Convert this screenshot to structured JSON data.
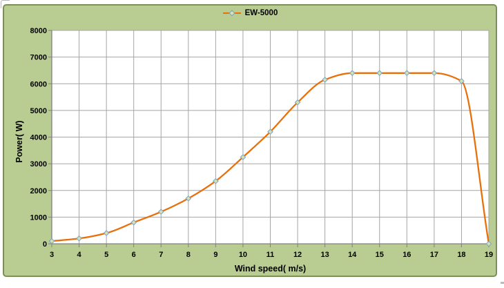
{
  "legend": {
    "label": "EW-5000"
  },
  "chart_data": {
    "type": "line",
    "title": "",
    "xlabel": "Wind speed( m/s)",
    "ylabel": "Power( W)",
    "xlim": [
      3,
      19
    ],
    "ylim": [
      0,
      8000
    ],
    "x_ticks": [
      3,
      4,
      5,
      6,
      7,
      8,
      9,
      10,
      11,
      12,
      13,
      14,
      15,
      16,
      17,
      18,
      19
    ],
    "y_ticks": [
      0,
      1000,
      2000,
      3000,
      4000,
      5000,
      6000,
      7000,
      8000
    ],
    "grid": true,
    "legend_position": "top-center",
    "series": [
      {
        "name": "EW-5000",
        "x": [
          3,
          4,
          5,
          6,
          7,
          8,
          9,
          10,
          11,
          12,
          13,
          14,
          15,
          16,
          17,
          18,
          19
        ],
        "values": [
          100,
          200,
          400,
          800,
          1200,
          1700,
          2350,
          3250,
          4200,
          5300,
          6150,
          6400,
          6400,
          6400,
          6400,
          6100,
          0
        ],
        "color": "#e8700a",
        "line_style": "smooth",
        "marker": {
          "shape": "diamond",
          "fill": "#d8e2ac",
          "stroke": "#7ea6c8"
        }
      }
    ],
    "colors": {
      "chart_background": "#b9cc92",
      "chart_border": "#7d8d5c",
      "plot_background": "#ffffff",
      "gridline": "#a4a4a4",
      "axis": "#7f7f7f",
      "text": "#000000"
    }
  }
}
